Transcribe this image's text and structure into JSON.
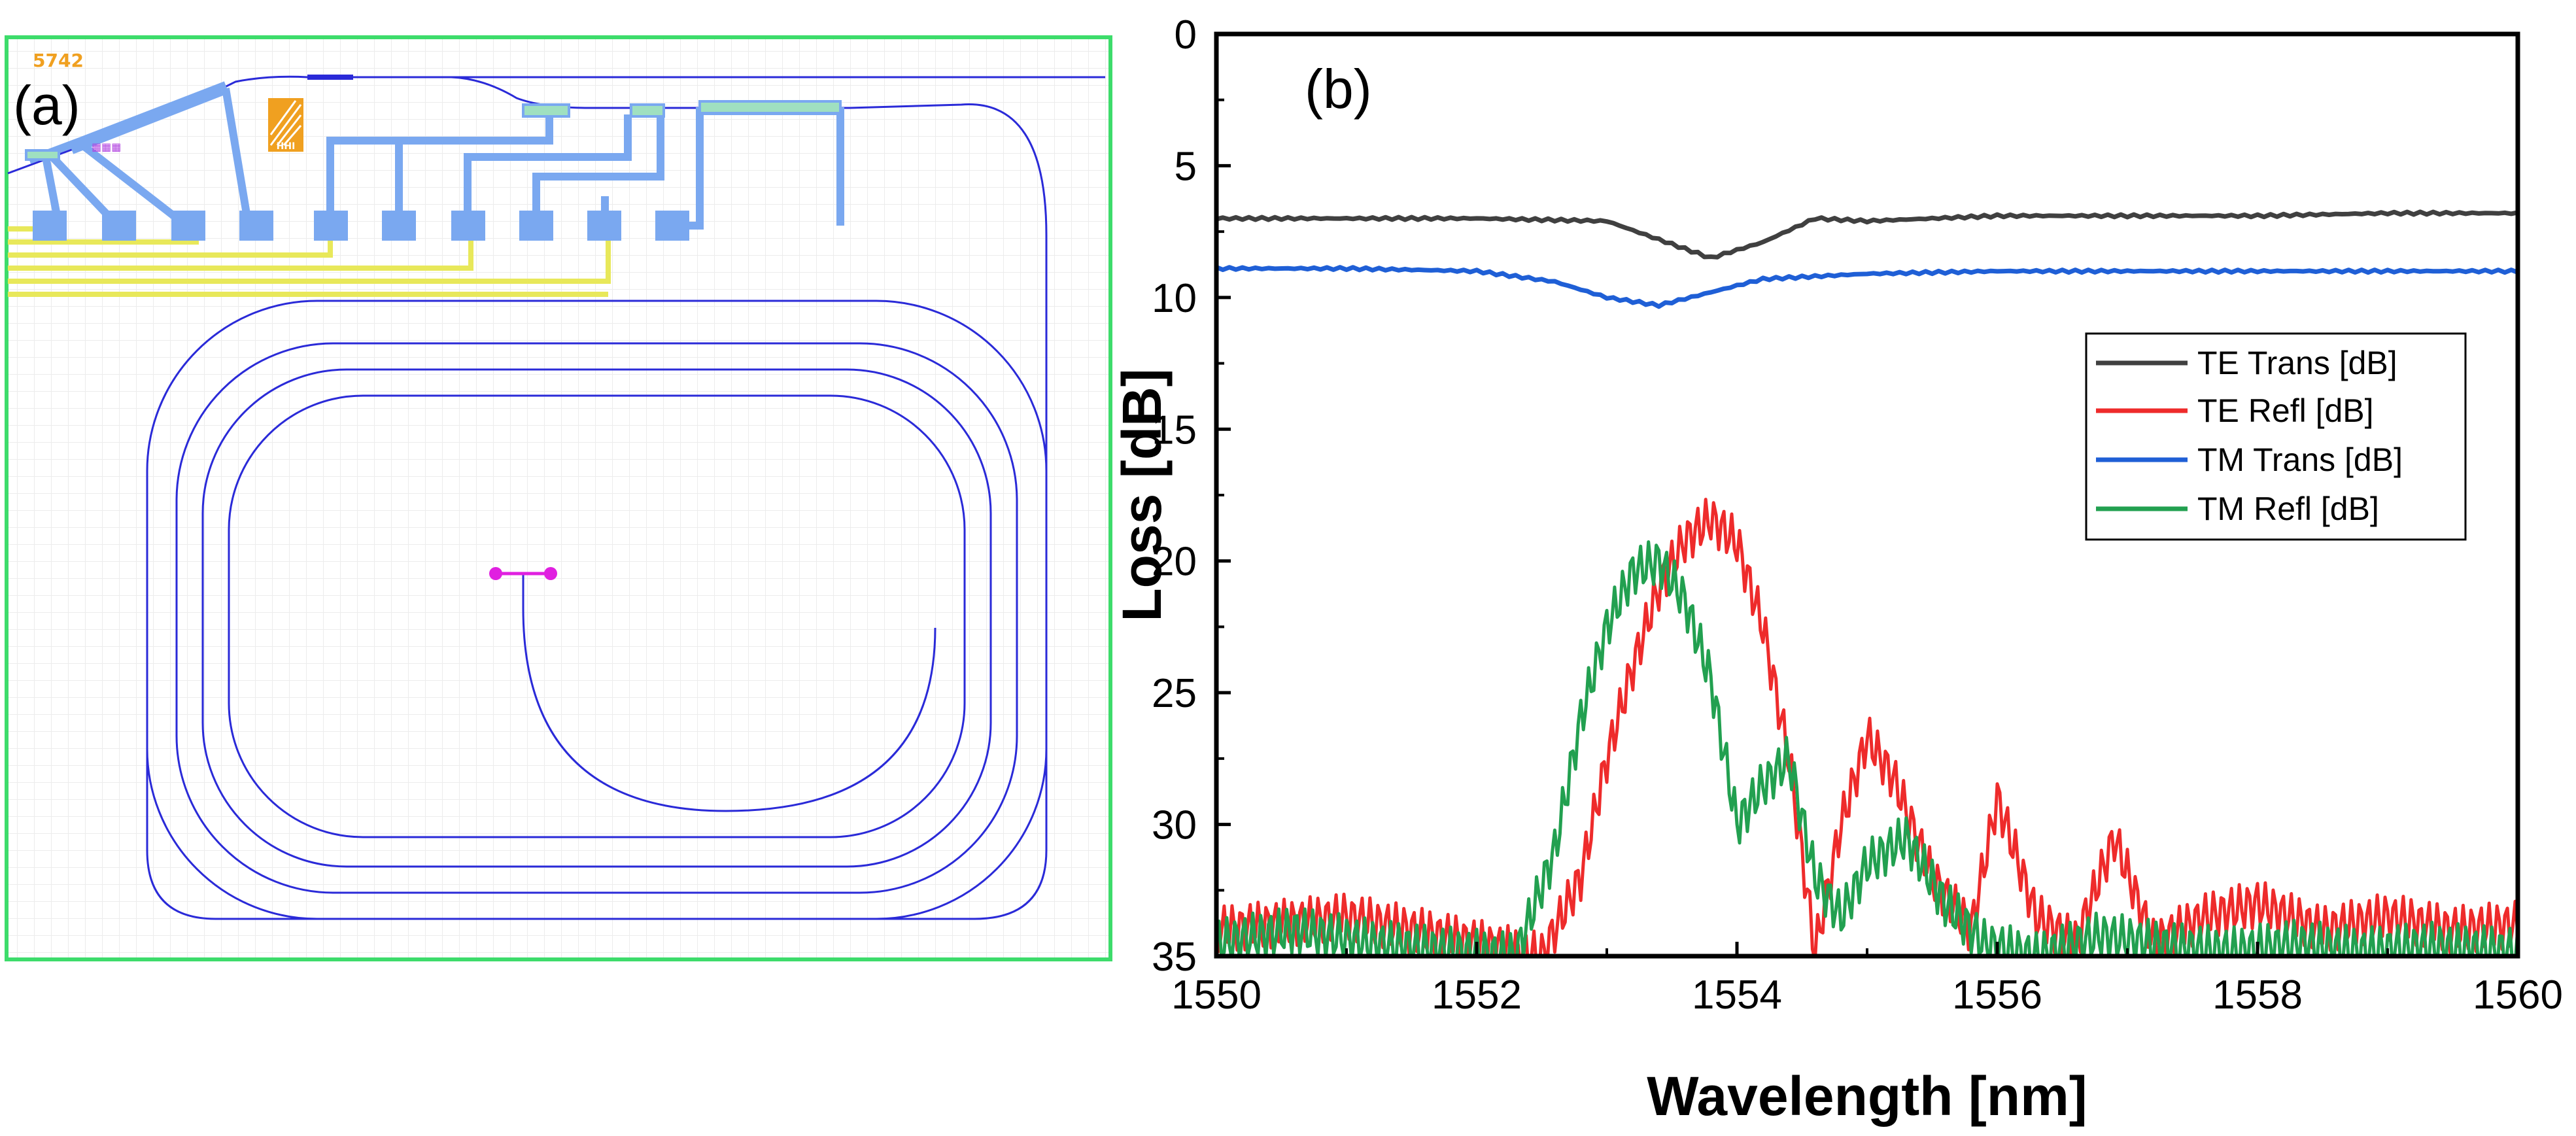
{
  "panel_a": {
    "label": "(a)",
    "chip_id": "5742",
    "logo_text": "HHI",
    "border_color": "#3ddc6b",
    "waveguide_color": "#2a2ad8",
    "pad_color": "#7aa8f0",
    "wire_color": "#e8e85a",
    "marker_color": "#e020e0"
  },
  "chart_data": {
    "type": "line",
    "panel_label": "(b)",
    "xlabel": "Wavelength [nm]",
    "ylabel": "Loss [dB]",
    "xlim": [
      1550,
      1560
    ],
    "ylim": [
      0,
      35
    ],
    "y_inverted": true,
    "x_ticks": [
      1550,
      1552,
      1554,
      1556,
      1558,
      1560
    ],
    "y_ticks": [
      0,
      5,
      10,
      15,
      20,
      25,
      30,
      35
    ],
    "grid": false,
    "legend_position": "right",
    "series": [
      {
        "name": "TE Trans [dB]",
        "color": "#404040",
        "x": [
          1550,
          1551,
          1552,
          1553,
          1553.4,
          1553.8,
          1554.2,
          1554.6,
          1555,
          1556,
          1557,
          1558,
          1559,
          1560
        ],
        "y": [
          7.0,
          7.0,
          7.0,
          7.1,
          7.8,
          8.5,
          7.9,
          7.0,
          7.1,
          6.9,
          6.9,
          6.9,
          6.8,
          6.8
        ]
      },
      {
        "name": "TE Refl [dB]",
        "color": "#ee2b2b",
        "x": [
          1550,
          1551,
          1552,
          1552.5,
          1552.8,
          1553.0,
          1553.2,
          1553.4,
          1553.6,
          1553.8,
          1554.0,
          1554.2,
          1554.4,
          1554.6,
          1554.8,
          1555.0,
          1555.2,
          1555.5,
          1555.8,
          1556.0,
          1556.3,
          1556.6,
          1556.9,
          1557.2,
          1557.6,
          1558,
          1558.5,
          1559,
          1559.5,
          1560
        ],
        "y": [
          34,
          33.5,
          34.5,
          35,
          32,
          27.5,
          24,
          21,
          19.2,
          18.4,
          19.3,
          22.5,
          27.5,
          34.8,
          30,
          26.7,
          28.2,
          32,
          34,
          29,
          33.5,
          34.5,
          30.5,
          34.5,
          33.5,
          33,
          34,
          33.5,
          34,
          33.8
        ]
      },
      {
        "name": "TM Trans [dB]",
        "color": "#1f5fd6",
        "x": [
          1550,
          1551,
          1552,
          1552.6,
          1553.0,
          1553.4,
          1553.8,
          1554.2,
          1555,
          1556,
          1557,
          1558,
          1559,
          1560
        ],
        "y": [
          8.9,
          8.9,
          9.0,
          9.4,
          10.0,
          10.3,
          9.8,
          9.3,
          9.1,
          9.0,
          9.0,
          9.0,
          9.0,
          9.0
        ]
      },
      {
        "name": "TM Refl [dB]",
        "color": "#22a050",
        "x": [
          1550,
          1550.6,
          1551.2,
          1551.8,
          1552.3,
          1552.6,
          1552.8,
          1553.0,
          1553.2,
          1553.4,
          1553.6,
          1553.8,
          1554.0,
          1554.2,
          1554.4,
          1554.6,
          1554.8,
          1555.0,
          1555.3,
          1555.6,
          1555.9,
          1556.3,
          1556.8,
          1557.3,
          1557.8,
          1558.3,
          1558.8,
          1559.3,
          1560
        ],
        "y": [
          34.5,
          34,
          34.5,
          34.8,
          35,
          31,
          26,
          22.5,
          20.4,
          20.0,
          21.5,
          24.5,
          30,
          28.5,
          27.5,
          32,
          33.5,
          31.5,
          30.5,
          33,
          34.5,
          35,
          34.2,
          34.6,
          34.8,
          34.5,
          34.8,
          34.6,
          34.8
        ]
      }
    ]
  }
}
